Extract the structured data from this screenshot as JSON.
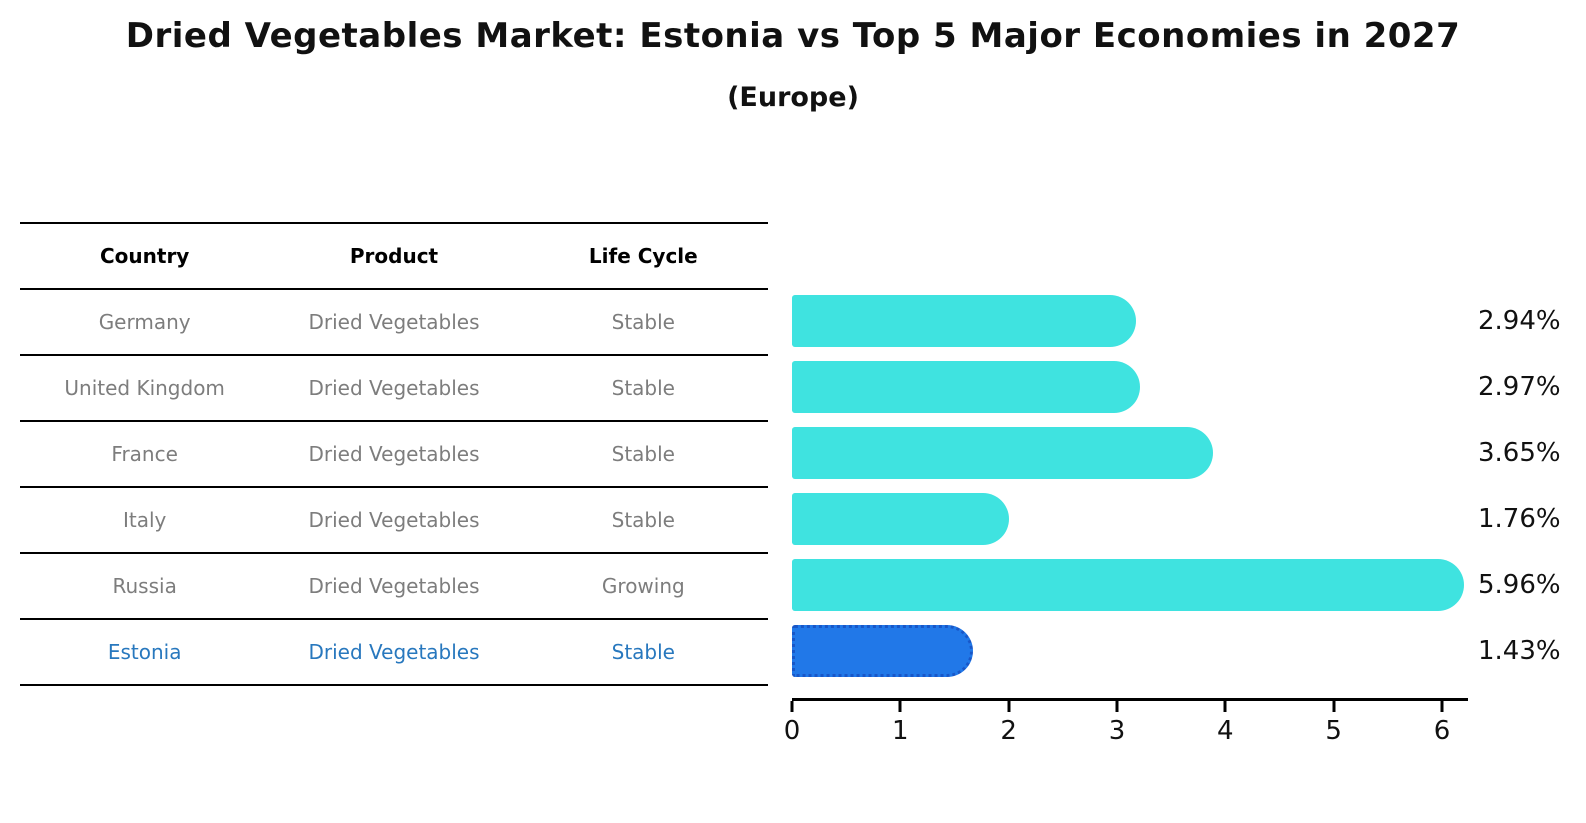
{
  "title": "Dried Vegetables Market: Estonia vs Top 5 Major Economies in 2027",
  "subtitle": "(Europe)",
  "table": {
    "headers": [
      "Country",
      "Product",
      "Life Cycle"
    ],
    "rows": [
      {
        "country": "Germany",
        "product": "Dried Vegetables",
        "life_cycle": "Stable",
        "highlight": false
      },
      {
        "country": "United Kingdom",
        "product": "Dried Vegetables",
        "life_cycle": "Stable",
        "highlight": false
      },
      {
        "country": "France",
        "product": "Dried Vegetables",
        "life_cycle": "Stable",
        "highlight": false
      },
      {
        "country": "Italy",
        "product": "Dried Vegetables",
        "life_cycle": "Stable",
        "highlight": false
      },
      {
        "country": "Russia",
        "product": "Dried Vegetables",
        "life_cycle": "Growing",
        "highlight": false
      },
      {
        "country": "Estonia",
        "product": "Dried Vegetables",
        "life_cycle": "Stable",
        "highlight": true
      }
    ]
  },
  "chart_data": {
    "type": "bar",
    "orientation": "horizontal",
    "title": "Dried Vegetables Market: Estonia vs Top 5 Major Economies in 2027 (Europe)",
    "categories": [
      "Germany",
      "United Kingdom",
      "France",
      "Italy",
      "Russia",
      "Estonia"
    ],
    "values": [
      2.94,
      2.97,
      3.65,
      1.76,
      5.96,
      1.43
    ],
    "value_labels": [
      "2.94%",
      "2.97%",
      "3.65%",
      "1.76%",
      "5.96%",
      "1.43%"
    ],
    "unit": "%",
    "xticks": [
      0,
      1,
      2,
      3,
      4,
      5,
      6
    ],
    "xlim": [
      0,
      6.24
    ],
    "grid": false,
    "legend": false,
    "highlight_index": 5,
    "colors": {
      "bar": "#3fe3e0",
      "highlight_bar": "#2178e8",
      "highlight_border": "#1857c8",
      "text": "#111111",
      "muted_text": "#7d7d7d",
      "highlight_text": "#2878be"
    }
  }
}
